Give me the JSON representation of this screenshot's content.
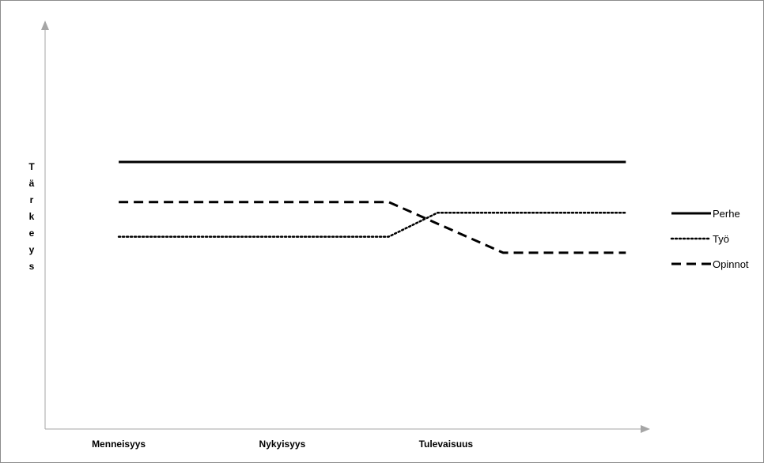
{
  "chart_data": {
    "type": "line",
    "title": "",
    "xlabel": "",
    "ylabel": "Tärkeys",
    "categories": [
      "Menneisyys",
      "Nykyisyys",
      "Tulevaisuus"
    ],
    "grid": false,
    "legend_position": "right",
    "series": [
      {
        "name": "Perhe",
        "style": "solid",
        "color": "#000000",
        "x": [
          0,
          1.5,
          3.1
        ],
        "values": [
          10,
          10,
          10
        ]
      },
      {
        "name": "Työ",
        "style": "dotted",
        "color": "#000000",
        "x": [
          0,
          1.65,
          1.95,
          3.1
        ],
        "values": [
          7.2,
          7.2,
          8.1,
          8.1
        ]
      },
      {
        "name": "Opinnot",
        "style": "dashed",
        "color": "#000000",
        "x": [
          0,
          1.65,
          2.35,
          3.1
        ],
        "values": [
          8.5,
          8.5,
          6.6,
          6.6
        ]
      }
    ],
    "xlim": [
      -0.45,
      3.2
    ],
    "ylim": [
      0,
      15
    ]
  }
}
